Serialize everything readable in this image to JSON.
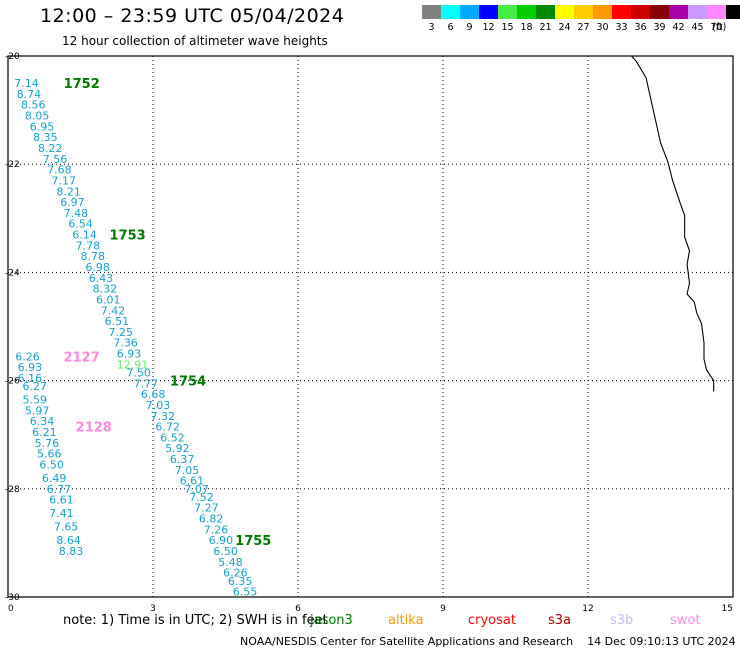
{
  "header": {
    "title": "12:00 – 23:59 UTC 05/04/2024",
    "subtitle": "12 hour collection of altimeter wave heights"
  },
  "color_scale": {
    "unit": "(ft)",
    "items": [
      {
        "label": "3",
        "color": "#808080"
      },
      {
        "label": "6",
        "color": "#00ffff"
      },
      {
        "label": "9",
        "color": "#00aaff"
      },
      {
        "label": "12",
        "color": "#0000ff"
      },
      {
        "label": "15",
        "color": "#44ee44"
      },
      {
        "label": "18",
        "color": "#00cc00"
      },
      {
        "label": "21",
        "color": "#008800"
      },
      {
        "label": "24",
        "color": "#ffff00"
      },
      {
        "label": "27",
        "color": "#ffcc00"
      },
      {
        "label": "30",
        "color": "#ff9900"
      },
      {
        "label": "33",
        "color": "#ff0000"
      },
      {
        "label": "36",
        "color": "#cc0000"
      },
      {
        "label": "39",
        "color": "#880000"
      },
      {
        "label": "42",
        "color": "#aa00aa"
      },
      {
        "label": "45",
        "color": "#cc99ff"
      },
      {
        "label": "70",
        "color": "#ff88ff"
      },
      {
        "label": "",
        "color": "#000000"
      }
    ]
  },
  "footer": {
    "note": "note:  1) Time is in UTC; 2) SWH is in feet",
    "missions": [
      {
        "name": "jason3",
        "color": "#007700"
      },
      {
        "name": "altika",
        "color": "#ff9900"
      },
      {
        "name": "cryosat",
        "color": "#ff0000"
      },
      {
        "name": "s3a",
        "color": "#aa0000"
      },
      {
        "name": "s3b",
        "color": "#bbbbff"
      },
      {
        "name": "swot",
        "color": "#ff88dd"
      }
    ],
    "credit": "NOAA/NESDIS Center for Satellite Applications and Research",
    "generated": "14 Dec 09:10:13 UTC 2024"
  },
  "chart_data": {
    "type": "scatter",
    "xlim": [
      0,
      15
    ],
    "ylim": [
      -30,
      -20
    ],
    "xticks": [
      "0",
      "3",
      "6",
      "9",
      "12",
      "15"
    ],
    "yticks": [
      "-20",
      "-22",
      "-24",
      "-26",
      "-28",
      "-30"
    ],
    "grid": true,
    "tracks": [
      {
        "label": "1752",
        "label_color": "#007700",
        "label_pos": [
          1.15,
          -20.5
        ]
      },
      {
        "label": "1753",
        "label_color": "#007700",
        "label_pos": [
          2.1,
          -23.3
        ]
      },
      {
        "label": "1754",
        "label_color": "#007700",
        "label_pos": [
          3.35,
          -26.0
        ]
      },
      {
        "label": "1755",
        "label_color": "#007700",
        "label_pos": [
          4.7,
          -28.95
        ]
      },
      {
        "label": "2127",
        "label_color": "#ff88dd",
        "label_pos": [
          1.15,
          -25.55
        ]
      },
      {
        "label": "2128",
        "label_color": "#ff88dd",
        "label_pos": [
          1.4,
          -26.85
        ]
      }
    ],
    "points": [
      {
        "x": 0.13,
        "y": -20.5,
        "v": "7.14"
      },
      {
        "x": 0.18,
        "y": -20.7,
        "v": "8.74"
      },
      {
        "x": 0.27,
        "y": -20.9,
        "v": "8.56"
      },
      {
        "x": 0.35,
        "y": -21.1,
        "v": "8.05"
      },
      {
        "x": 0.45,
        "y": -21.3,
        "v": "6.95"
      },
      {
        "x": 0.52,
        "y": -21.5,
        "v": "8.35"
      },
      {
        "x": 0.62,
        "y": -21.7,
        "v": "8.22"
      },
      {
        "x": 0.72,
        "y": -21.9,
        "v": "7.56"
      },
      {
        "x": 0.81,
        "y": -22.1,
        "v": "7.68"
      },
      {
        "x": 0.9,
        "y": -22.3,
        "v": "7.17"
      },
      {
        "x": 1.0,
        "y": -22.5,
        "v": "8.21"
      },
      {
        "x": 1.08,
        "y": -22.7,
        "v": "6.97"
      },
      {
        "x": 1.15,
        "y": -22.9,
        "v": "7.48"
      },
      {
        "x": 1.25,
        "y": -23.1,
        "v": "6.54"
      },
      {
        "x": 1.33,
        "y": -23.3,
        "v": "6.14"
      },
      {
        "x": 1.4,
        "y": -23.5,
        "v": "7.78"
      },
      {
        "x": 1.5,
        "y": -23.7,
        "v": "8.78"
      },
      {
        "x": 1.6,
        "y": -23.9,
        "v": "6.98"
      },
      {
        "x": 1.67,
        "y": -24.1,
        "v": "6.43"
      },
      {
        "x": 1.75,
        "y": -24.3,
        "v": "8.32"
      },
      {
        "x": 1.82,
        "y": -24.5,
        "v": "6.01"
      },
      {
        "x": 1.92,
        "y": -24.7,
        "v": "7.42"
      },
      {
        "x": 2.0,
        "y": -24.9,
        "v": "6.51"
      },
      {
        "x": 2.08,
        "y": -25.1,
        "v": "7.25"
      },
      {
        "x": 2.18,
        "y": -25.3,
        "v": "7.36"
      },
      {
        "x": 2.25,
        "y": -25.5,
        "v": "6.93"
      },
      {
        "x": 2.25,
        "y": -25.7,
        "v": "12.91",
        "color": "#66ee66"
      },
      {
        "x": 2.45,
        "y": -25.85,
        "v": "7.50"
      },
      {
        "x": 2.6,
        "y": -26.05,
        "v": "7.77"
      },
      {
        "x": 2.75,
        "y": -26.25,
        "v": "6.68"
      },
      {
        "x": 2.85,
        "y": -26.45,
        "v": "7.03"
      },
      {
        "x": 2.95,
        "y": -26.65,
        "v": "7.32"
      },
      {
        "x": 3.05,
        "y": -26.85,
        "v": "6.72"
      },
      {
        "x": 3.15,
        "y": -27.05,
        "v": "6.52"
      },
      {
        "x": 3.25,
        "y": -27.25,
        "v": "5.92"
      },
      {
        "x": 3.35,
        "y": -27.45,
        "v": "6.37"
      },
      {
        "x": 3.45,
        "y": -27.65,
        "v": "7.05"
      },
      {
        "x": 3.55,
        "y": -27.85,
        "v": "6.61"
      },
      {
        "x": 3.65,
        "y": -28.0,
        "v": "7.07"
      },
      {
        "x": 3.75,
        "y": -28.15,
        "v": "7.52"
      },
      {
        "x": 3.85,
        "y": -28.35,
        "v": "7.27"
      },
      {
        "x": 3.95,
        "y": -28.55,
        "v": "6.82"
      },
      {
        "x": 4.05,
        "y": -28.75,
        "v": "7.26"
      },
      {
        "x": 4.15,
        "y": -28.95,
        "v": "6.90"
      },
      {
        "x": 4.25,
        "y": -29.15,
        "v": "6.50"
      },
      {
        "x": 4.35,
        "y": -29.35,
        "v": "5.48"
      },
      {
        "x": 4.45,
        "y": -29.55,
        "v": "6.26"
      },
      {
        "x": 4.55,
        "y": -29.7,
        "v": "6.35"
      },
      {
        "x": 4.65,
        "y": -29.9,
        "v": "6.55"
      },
      {
        "x": 0.15,
        "y": -25.55,
        "v": "6.26"
      },
      {
        "x": 0.2,
        "y": -25.75,
        "v": "6.93"
      },
      {
        "x": 0.2,
        "y": -25.95,
        "v": "6.16"
      },
      {
        "x": 0.3,
        "y": -26.1,
        "v": "6.27"
      },
      {
        "x": 0.3,
        "y": -26.35,
        "v": "5.59"
      },
      {
        "x": 0.35,
        "y": -26.55,
        "v": "5.97"
      },
      {
        "x": 0.45,
        "y": -26.75,
        "v": "6.34"
      },
      {
        "x": 0.5,
        "y": -26.95,
        "v": "6.21"
      },
      {
        "x": 0.55,
        "y": -27.15,
        "v": "5.76"
      },
      {
        "x": 0.6,
        "y": -27.35,
        "v": "5.66"
      },
      {
        "x": 0.65,
        "y": -27.55,
        "v": "6.50"
      },
      {
        "x": 0.7,
        "y": -27.8,
        "v": "6.49"
      },
      {
        "x": 0.8,
        "y": -28.0,
        "v": "6.77"
      },
      {
        "x": 0.85,
        "y": -28.2,
        "v": "6.61"
      },
      {
        "x": 0.85,
        "y": -28.45,
        "v": "7.41"
      },
      {
        "x": 0.95,
        "y": -28.7,
        "v": "7.65"
      },
      {
        "x": 1.0,
        "y": -28.95,
        "v": "8.64"
      },
      {
        "x": 1.05,
        "y": -29.15,
        "v": "8.83"
      }
    ],
    "coastline": [
      [
        12.9,
        -20.0
      ],
      [
        13.0,
        -20.1
      ],
      [
        13.2,
        -20.4
      ],
      [
        13.3,
        -20.8
      ],
      [
        13.4,
        -21.2
      ],
      [
        13.5,
        -21.6
      ],
      [
        13.65,
        -21.95
      ],
      [
        13.75,
        -22.3
      ],
      [
        13.9,
        -22.7
      ],
      [
        14.0,
        -22.95
      ],
      [
        14.0,
        -23.35
      ],
      [
        14.1,
        -23.6
      ],
      [
        14.05,
        -23.85
      ],
      [
        14.1,
        -24.2
      ],
      [
        14.05,
        -24.4
      ],
      [
        14.2,
        -24.55
      ],
      [
        14.25,
        -24.75
      ],
      [
        14.35,
        -24.95
      ],
      [
        14.4,
        -25.3
      ],
      [
        14.4,
        -25.6
      ],
      [
        14.45,
        -25.8
      ],
      [
        14.6,
        -26.0
      ],
      [
        14.6,
        -26.2
      ]
    ]
  }
}
